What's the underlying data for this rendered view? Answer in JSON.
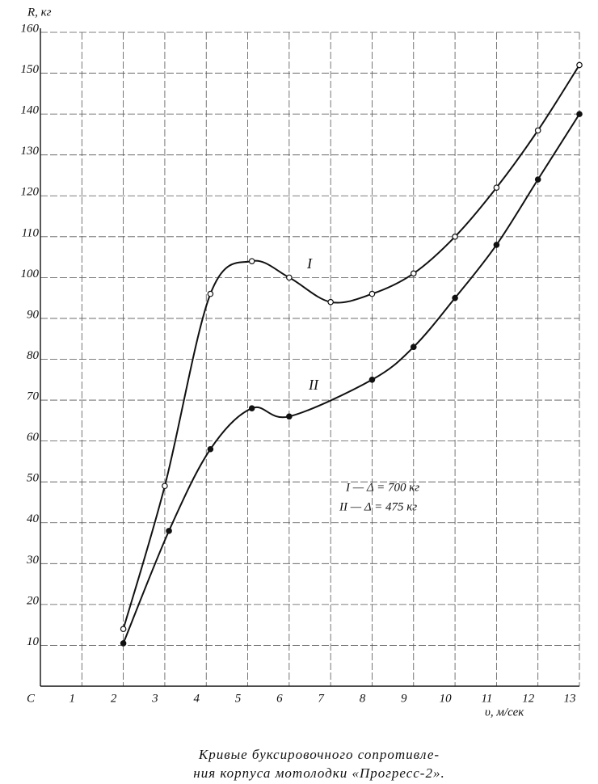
{
  "chart_data": {
    "type": "line",
    "y_label": "R, кг",
    "x_label": "υ, м/сек",
    "caption": [
      "Кривые буксировочного сопротивле-",
      "ния корпуса мотолодки «Прогресс-2»."
    ],
    "legend_entries": [
      "I — Δ = 700 кг",
      "II — Δ = 475 кг"
    ],
    "series": [
      {
        "name": "I",
        "color": "#111111",
        "marker": "open",
        "x": [
          2,
          3,
          4.1,
          5.1,
          6,
          7,
          8,
          9,
          10,
          11,
          12,
          13
        ],
        "values": [
          14,
          49,
          96,
          104,
          100,
          94,
          96,
          101,
          110,
          122,
          136,
          152
        ]
      },
      {
        "name": "II",
        "color": "#111111",
        "marker": "filled",
        "x": [
          2,
          3.1,
          4.1,
          5.1,
          6,
          8,
          9,
          10,
          11,
          12,
          13
        ],
        "values": [
          10.5,
          38,
          58,
          68,
          66,
          75,
          83,
          95,
          108,
          124,
          140
        ]
      }
    ],
    "xlim": [
      0,
      13
    ],
    "ylim": [
      0,
      160
    ],
    "xticks": [
      {
        "value": 0,
        "label": "C"
      },
      1,
      2,
      3,
      4,
      5,
      6,
      7,
      8,
      9,
      10,
      11,
      12,
      13
    ],
    "yticks": [
      10,
      20,
      30,
      40,
      50,
      60,
      70,
      80,
      90,
      100,
      110,
      120,
      130,
      140,
      150,
      160
    ],
    "grid": true
  }
}
